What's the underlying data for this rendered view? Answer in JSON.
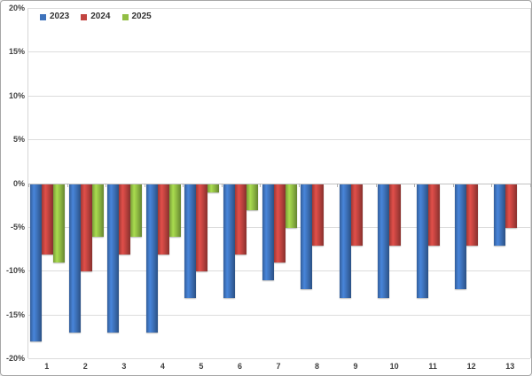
{
  "chart_data": {
    "type": "bar",
    "title": "",
    "xlabel": "",
    "ylabel": "",
    "categories": [
      "1",
      "2",
      "3",
      "4",
      "5",
      "6",
      "7",
      "8",
      "9",
      "10",
      "11",
      "12",
      "13"
    ],
    "series": [
      {
        "name": "2023",
        "color": "#3E73BC",
        "values": [
          -18,
          -17,
          -17,
          -17,
          -13,
          -13,
          -11,
          -12,
          -13,
          -13,
          -13,
          -12,
          -7
        ]
      },
      {
        "name": "2024",
        "color": "#C24440",
        "values": [
          -8,
          -10,
          -8,
          -8,
          -10,
          -8,
          -9,
          -7,
          -7,
          -7,
          -7,
          -7,
          -5
        ]
      },
      {
        "name": "2025",
        "color": "#92BE44",
        "values": [
          -9,
          -6,
          -6,
          -6,
          -1,
          -3,
          -5,
          null,
          null,
          null,
          null,
          null,
          null
        ]
      }
    ],
    "ylim": [
      -20,
      20
    ],
    "ytick_step": 5,
    "ytick_labels": [
      "20%",
      "15%",
      "10%",
      "5%",
      "0%",
      "-5%",
      "-10%",
      "-15%",
      "-20%"
    ],
    "grid": true,
    "legend_position": "top-left",
    "colors": {
      "gridline": "#dcdcdc",
      "zero_line": "#c2c2c2",
      "axis_text": "#404040",
      "plot_border": "#d6d6d6",
      "chart_border": "#a6a6a6",
      "background": "#ffffff"
    }
  }
}
